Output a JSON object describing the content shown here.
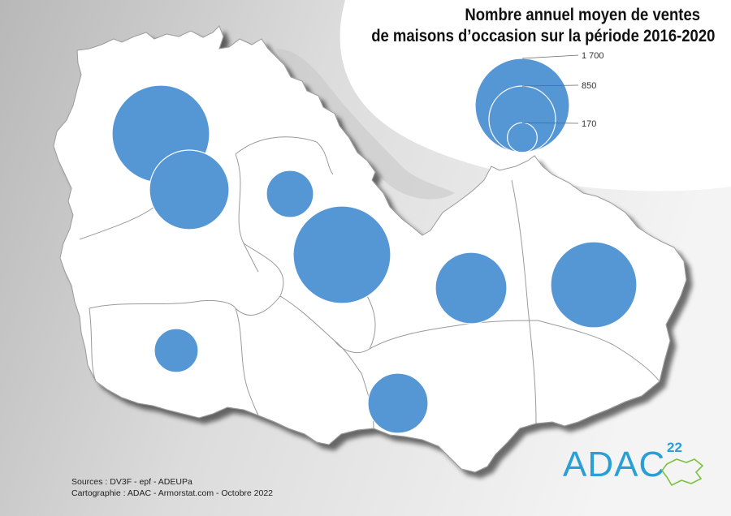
{
  "title": {
    "line1": "Nombre annuel moyen de ventes",
    "line2": "de maisons d’occasion sur la période 2016-2020"
  },
  "legend": {
    "items": [
      {
        "label": "1 700",
        "value": 1700
      },
      {
        "label": "850",
        "value": 850
      },
      {
        "label": "170",
        "value": 170
      }
    ]
  },
  "sources": {
    "line1": "Sources : DV3F - epf - ADEUPa",
    "line2": "Cartographie : ADAC - Armorstat.com - Octobre 2022"
  },
  "logo": {
    "text": "ADAC",
    "number": "22"
  },
  "colors": {
    "circle_fill": "#5596d4",
    "map_fill": "#ffffff",
    "background_gray": "#d2d2d2",
    "logo_blue": "#2a9fd6",
    "logo_green": "#7cc142"
  }
}
